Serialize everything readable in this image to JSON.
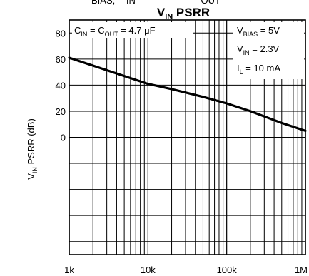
{
  "header_fragment": {
    "a": "BIAS,",
    "b": "IN",
    "c": "OUT"
  },
  "title": {
    "main": "V",
    "sub": "IN",
    "rest": " PSRR"
  },
  "ylabel": {
    "main": "V",
    "sub": "IN",
    "rest": "  PSRR (dB)"
  },
  "annotations": {
    "cap": {
      "p1": "C",
      "s1": "IN",
      "p2": " = C",
      "s2": "OUT",
      "p3": " = 4.7 μF"
    },
    "vbias": {
      "p1": "V",
      "s1": "BIAS",
      "p2": " = 5V"
    },
    "vin": {
      "p1": "V",
      "s1": "IN",
      "p2": " = 2.3V"
    },
    "il": {
      "p1": "I",
      "s1": "L",
      "p2": " = 10 mA"
    }
  },
  "chart_data": {
    "type": "line",
    "title": "VIN PSRR",
    "xlabel": "",
    "ylabel": "VIN PSRR (dB)",
    "x_scale": "log",
    "xlim": [
      1000,
      1000000
    ],
    "ylim": [
      -90,
      90
    ],
    "x_ticks": [
      1000,
      10000,
      100000,
      1000000
    ],
    "x_tick_labels": [
      "1k",
      "10k",
      "100k",
      "1M"
    ],
    "y_ticks": [
      0,
      20,
      40,
      60,
      80
    ],
    "y_tick_labels": [
      "0",
      "20",
      "40",
      "60",
      "80"
    ],
    "grid": true,
    "series": [
      {
        "x": [
          1000,
          2000,
          5000,
          10000,
          20000,
          50000,
          100000,
          200000,
          500000,
          1000000
        ],
        "y": [
          61,
          55,
          47,
          41,
          37,
          31,
          26,
          20,
          11,
          5
        ],
        "color": "#000000"
      }
    ]
  }
}
